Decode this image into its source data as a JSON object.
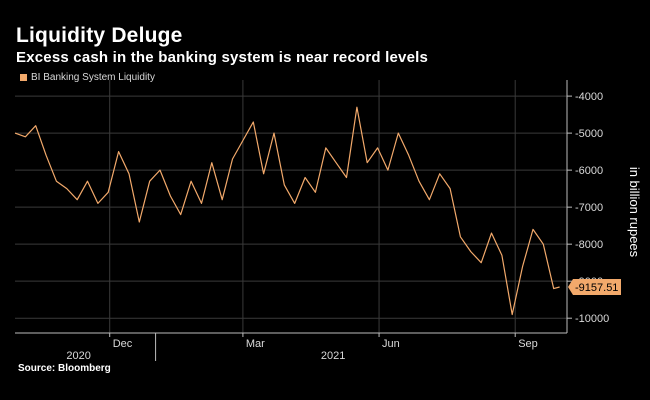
{
  "title": "Liquidity Deluge",
  "subtitle": "Excess cash in the banking system is near record levels",
  "source": "Source: Bloomberg",
  "colors": {
    "line": "#f2a96b",
    "grid": "#3a3a3a",
    "background": "#000000"
  },
  "chart_data": {
    "type": "line",
    "ylabel": "in billion rupees",
    "ylim": [
      -10400,
      -3700
    ],
    "yticks": [
      -4000,
      -5000,
      -6000,
      -7000,
      -8000,
      -9000,
      -10000
    ],
    "xlim": [
      "2020-09-28",
      "2021-10-06"
    ],
    "x_month_ticks": [
      {
        "label": "Dec",
        "date": "2020-12-01"
      },
      {
        "label": "Mar",
        "date": "2021-03-01"
      },
      {
        "label": "Jun",
        "date": "2021-06-01"
      },
      {
        "label": "Sep",
        "date": "2021-09-01"
      }
    ],
    "x_year_labels": [
      {
        "label": "2020",
        "center": "2020-11-10"
      },
      {
        "label": "2021",
        "center": "2021-05-01"
      }
    ],
    "year_divider": "2021-01-01",
    "last_value_label": "-9157.51",
    "series": [
      {
        "name": "BI Banking System Liquidity",
        "x": [
          "2020-09-28",
          "2020-10-05",
          "2020-10-12",
          "2020-10-19",
          "2020-10-26",
          "2020-11-02",
          "2020-11-09",
          "2020-11-16",
          "2020-11-23",
          "2020-11-30",
          "2020-12-07",
          "2020-12-14",
          "2020-12-21",
          "2020-12-28",
          "2021-01-04",
          "2021-01-11",
          "2021-01-18",
          "2021-01-25",
          "2021-02-01",
          "2021-02-08",
          "2021-02-15",
          "2021-02-22",
          "2021-03-01",
          "2021-03-08",
          "2021-03-15",
          "2021-03-22",
          "2021-03-29",
          "2021-04-05",
          "2021-04-12",
          "2021-04-19",
          "2021-04-26",
          "2021-05-03",
          "2021-05-10",
          "2021-05-17",
          "2021-05-24",
          "2021-05-31",
          "2021-06-07",
          "2021-06-14",
          "2021-06-21",
          "2021-06-28",
          "2021-07-05",
          "2021-07-12",
          "2021-07-19",
          "2021-07-26",
          "2021-08-02",
          "2021-08-09",
          "2021-08-16",
          "2021-08-23",
          "2021-08-30",
          "2021-09-06",
          "2021-09-13",
          "2021-09-20",
          "2021-09-27",
          "2021-10-01"
        ],
        "values": [
          -5000,
          -5100,
          -4800,
          -5600,
          -6300,
          -6500,
          -6800,
          -6300,
          -6900,
          -6600,
          -5500,
          -6100,
          -7400,
          -6300,
          -6000,
          -6700,
          -7200,
          -6300,
          -6900,
          -5800,
          -6800,
          -5700,
          -5200,
          -4700,
          -6100,
          -5000,
          -6400,
          -6900,
          -6200,
          -6600,
          -5400,
          -5800,
          -6200,
          -4300,
          -5800,
          -5400,
          -6000,
          -5000,
          -5600,
          -6300,
          -6800,
          -6100,
          -6500,
          -7800,
          -8200,
          -8500,
          -7700,
          -8300,
          -9900,
          -8600,
          -7600,
          -8000,
          -9200,
          -9157.51
        ]
      }
    ]
  }
}
